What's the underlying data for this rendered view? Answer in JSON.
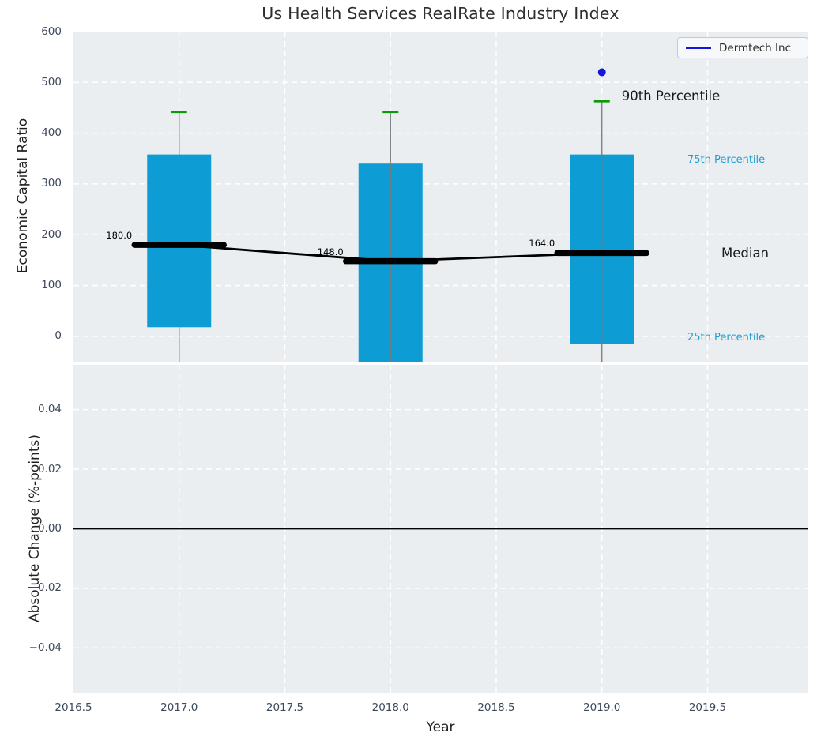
{
  "title": "Us Health Services RealRate Industry Index",
  "legend": {
    "label": "Dermtech Inc",
    "position": "upper right",
    "line_color": "#1414dd"
  },
  "annotations": {
    "p90": "90th Percentile",
    "p75": "75th Percentile",
    "median": "Median",
    "p25": "25th Percentile"
  },
  "colors": {
    "axes_background": "#eaeef0",
    "grid": "#ffffff",
    "box_fill": "#0d9dd4",
    "median_line": "#000000",
    "p90_cap": "#0a9a0a",
    "whisker": "#75797d",
    "dermtech_point": "#1414dd",
    "percentile_label_blue": "#1b9fd7",
    "tick_text": "#3d4a5c",
    "zero_line": "#000000"
  },
  "chart_data": [
    {
      "type": "bar",
      "subtype": "percentile-box-plot",
      "ylabel": "Economic Capital Ratio",
      "xlabel": "Year",
      "xlim": [
        2016.5,
        2019.973
      ],
      "ylim": [
        -50,
        600
      ],
      "grid": true,
      "yticks": {
        "values": [
          0,
          100,
          200,
          300,
          400,
          500,
          600
        ],
        "labels": [
          "0",
          "100",
          "200",
          "300",
          "400",
          "500",
          "600"
        ]
      },
      "xticks": {
        "values": [
          2016.5,
          2017.0,
          2017.5,
          2018.0,
          2018.5,
          2019.0,
          2019.5
        ],
        "labels": [
          "2016.5",
          "2017.0",
          "2017.5",
          "2018.0",
          "2018.5",
          "2019.0",
          "2019.5"
        ]
      },
      "series": {
        "years": [
          2017,
          2018,
          2019
        ],
        "median": [
          180.0,
          148.0,
          164.0
        ],
        "median_labels": [
          "180.0",
          "148.0",
          "164.0"
        ],
        "p75": [
          358,
          340,
          358
        ],
        "p25": [
          18,
          -62,
          -15
        ],
        "p25_clipped_below_axis": [
          false,
          true,
          false
        ],
        "p90": [
          442,
          442,
          463
        ],
        "whiskers_extend_to_plot_bottom": true
      },
      "dermtech_point": {
        "year": 2019,
        "value": 520
      }
    },
    {
      "type": "line",
      "subtype": "empty-panel-with-zero-line",
      "ylabel": "Absolute Change (%-points)",
      "ylim": [
        -0.055,
        0.055
      ],
      "grid": true,
      "zero_line": 0.0,
      "yticks": {
        "values": [
          0.04,
          0.02,
          0.0,
          -0.02,
          -0.04
        ],
        "labels": [
          "0.04",
          "0.02",
          "0.00",
          "−0.02",
          "−0.04"
        ]
      }
    }
  ]
}
